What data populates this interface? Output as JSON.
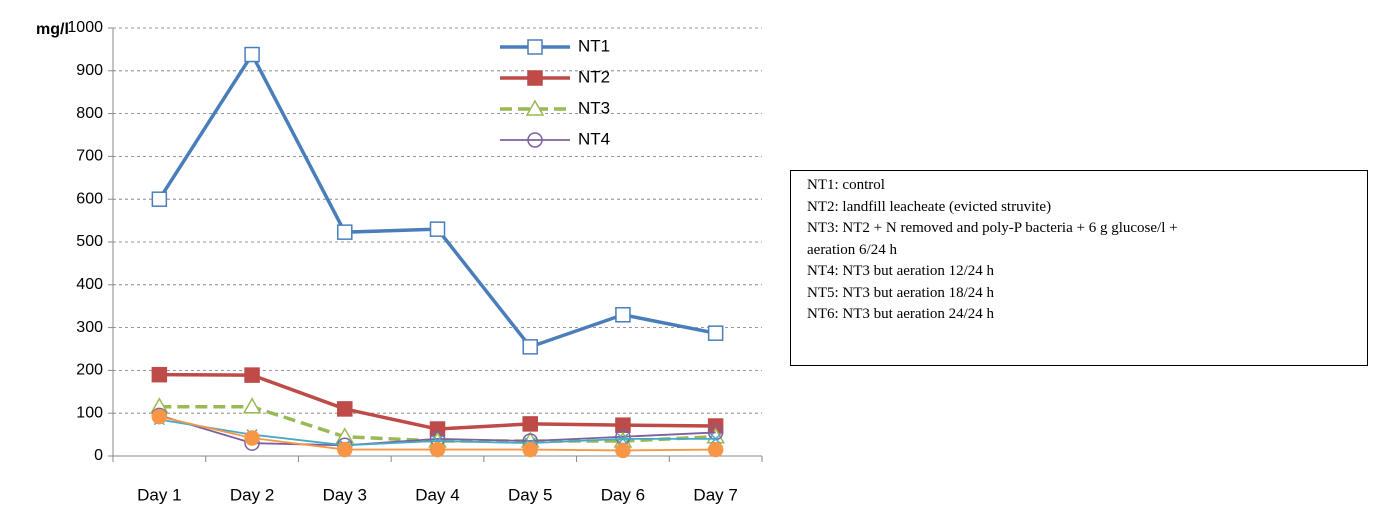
{
  "chart_data": {
    "type": "line",
    "y_label": "mg/l",
    "categories": [
      "Day 1",
      "Day 2",
      "Day 3",
      "Day 4",
      "Day 5",
      "Day 6",
      "Day 7"
    ],
    "series": [
      {
        "name": "NT1",
        "color": "#4a7ebb",
        "marker": "square-open",
        "values": [
          600,
          938,
          523,
          530,
          255,
          330,
          287
        ]
      },
      {
        "name": "NT2",
        "color": "#be4b48",
        "marker": "square",
        "values": [
          190,
          189,
          110,
          63,
          75,
          72,
          70
        ]
      },
      {
        "name": "NT3",
        "color": "#98b954",
        "marker": "triangle-open",
        "dashed": true,
        "values": [
          115,
          115,
          45,
          35,
          35,
          35,
          45
        ]
      },
      {
        "name": "NT4",
        "color": "#7d60a0",
        "marker": "circle-open",
        "values": [
          95,
          30,
          25,
          40,
          35,
          45,
          55
        ]
      },
      {
        "color": "#46aac5",
        "marker": "x",
        "values": [
          85,
          50,
          25,
          35,
          30,
          40,
          40
        ]
      },
      {
        "color": "#f79646",
        "marker": "circle",
        "values": [
          92,
          42,
          15,
          15,
          15,
          13,
          15
        ]
      }
    ],
    "ylim": [
      0,
      1000
    ],
    "yticks": [
      0,
      100,
      200,
      300,
      400,
      500,
      600,
      700,
      800,
      900,
      1000
    ],
    "grid": true,
    "note": {
      "lines": [
        "NT1: control",
        "NT2: landfill leacheate (evicted struvite)",
        "NT3: NT2 + N removed and poly-P bacteria + 6 g glucose/l +",
        "aeration 6/24 h",
        "NT4: NT3 but aeration 12/24 h",
        "NT5: NT3 but aeration 18/24 h",
        "NT6: NT3 but aeration 24/24 h"
      ]
    }
  }
}
